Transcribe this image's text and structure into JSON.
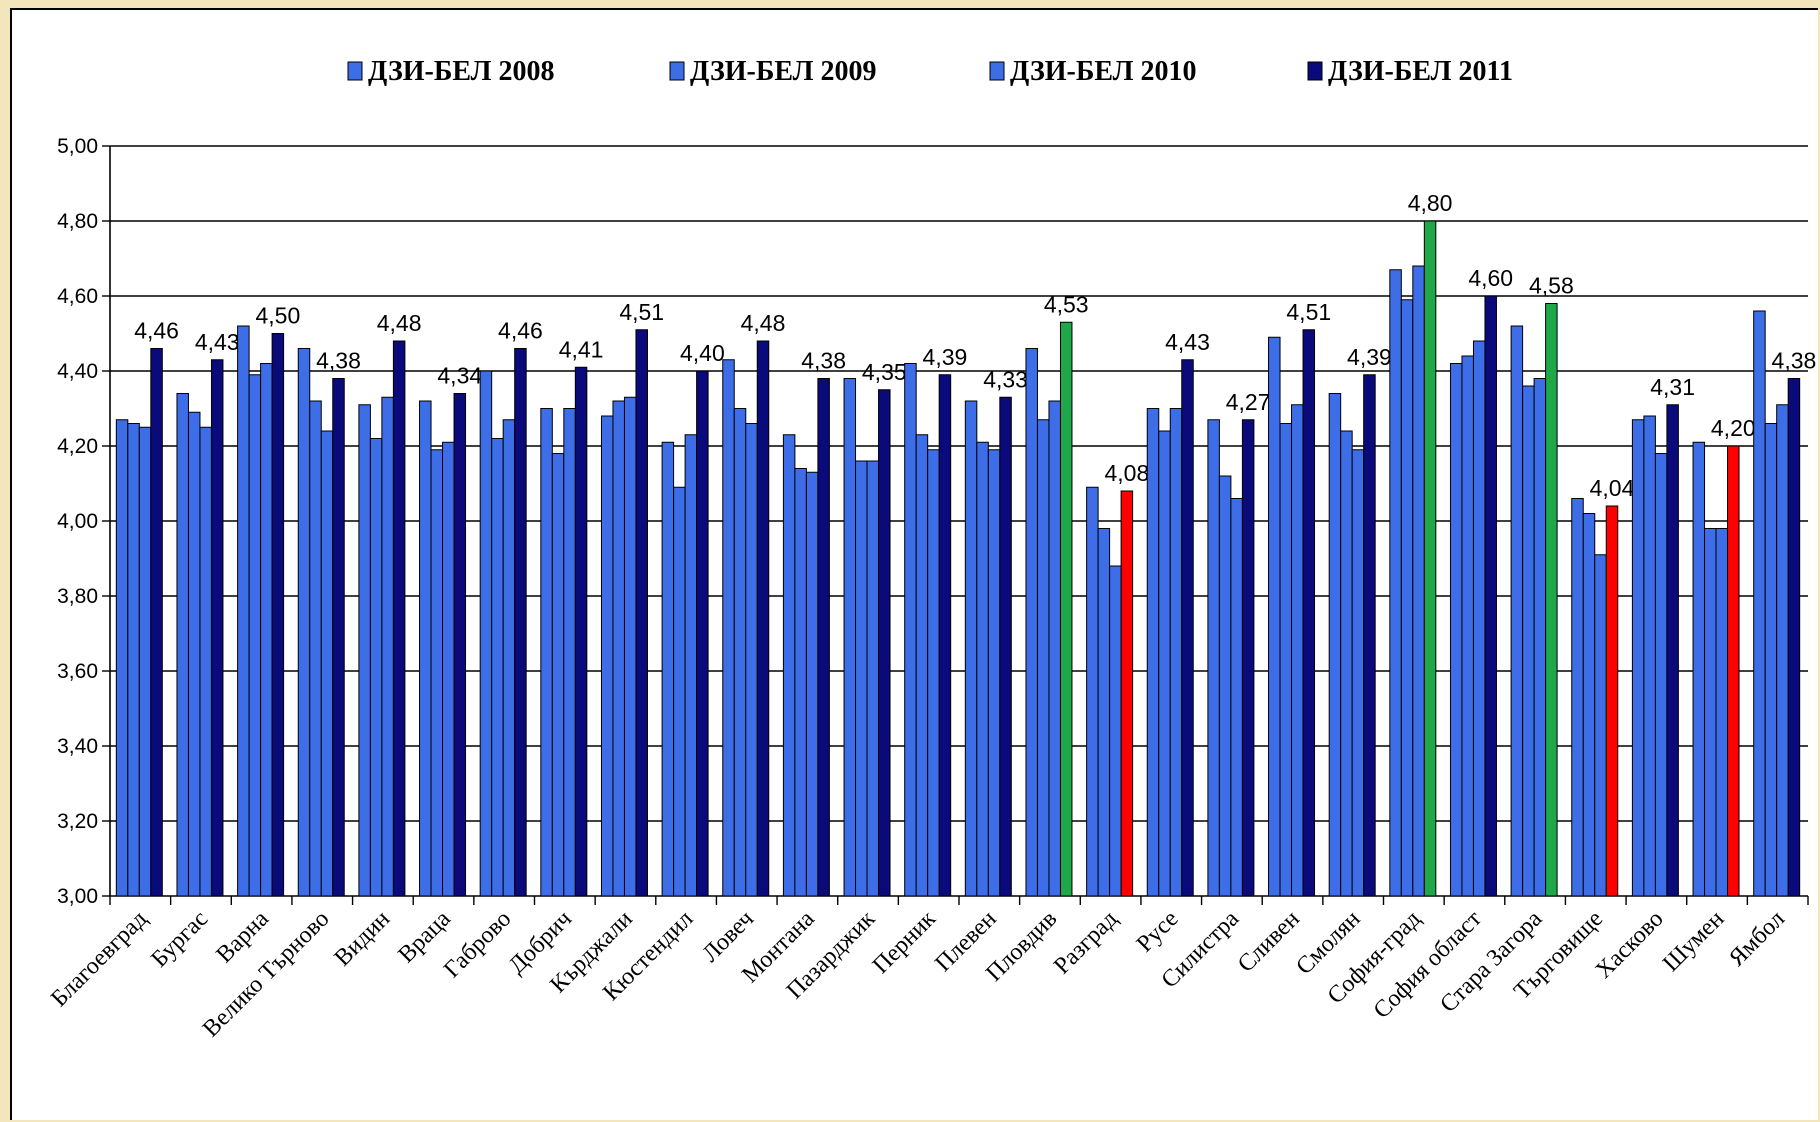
{
  "chart_data": {
    "type": "bar",
    "title": "",
    "xlabel": "",
    "ylabel": "",
    "ylim": [
      3.0,
      5.0
    ],
    "y_ticks": [
      "3,00",
      "3,20",
      "3,40",
      "3,60",
      "3,80",
      "4,00",
      "4,20",
      "4,40",
      "4,60",
      "4,80",
      "5,00"
    ],
    "grid": true,
    "legend_position": "top",
    "categories": [
      "Благоевград",
      "Бургас",
      "Варна",
      "Велико Търново",
      "Видин",
      "Враца",
      "Габрово",
      "Добрич",
      "Кърджали",
      "Кюстендил",
      "Ловеч",
      "Монтана",
      "Пазарджик",
      "Перник",
      "Плевен",
      "Пловдив",
      "Разград",
      "Русе",
      "Силистра",
      "Сливен",
      "Смолян",
      "София-град",
      "София област",
      "Стара Загора",
      "Търговище",
      "Хасково",
      "Шумен",
      "Ямбол"
    ],
    "series": [
      {
        "name": "ДЗИ-БЕЛ 2008",
        "color": "#3d6ee8",
        "values": [
          4.27,
          4.34,
          4.52,
          4.46,
          4.31,
          4.32,
          4.4,
          4.3,
          4.28,
          4.21,
          4.43,
          4.23,
          4.38,
          4.42,
          4.32,
          4.46,
          4.09,
          4.3,
          4.27,
          4.49,
          4.34,
          4.67,
          4.42,
          4.52,
          4.06,
          4.27,
          4.21,
          4.56
        ]
      },
      {
        "name": "ДЗИ-БЕЛ 2009",
        "color": "#3d6ee8",
        "values": [
          4.26,
          4.29,
          4.39,
          4.32,
          4.22,
          4.19,
          4.22,
          4.18,
          4.32,
          4.09,
          4.3,
          4.14,
          4.16,
          4.23,
          4.21,
          4.27,
          3.98,
          4.24,
          4.12,
          4.26,
          4.24,
          4.59,
          4.44,
          4.36,
          4.02,
          4.28,
          3.98,
          4.26
        ]
      },
      {
        "name": "ДЗИ-БЕЛ 2010",
        "color": "#3d6ee8",
        "values": [
          4.25,
          4.25,
          4.42,
          4.24,
          4.33,
          4.21,
          4.27,
          4.3,
          4.33,
          4.23,
          4.26,
          4.13,
          4.16,
          4.19,
          4.19,
          4.32,
          3.88,
          4.3,
          4.06,
          4.31,
          4.19,
          4.68,
          4.48,
          4.38,
          3.91,
          4.18,
          3.98,
          4.31
        ]
      },
      {
        "name": "ДЗИ-БЕЛ 2011",
        "color": "#0a0a7a",
        "values": [
          4.46,
          4.43,
          4.5,
          4.38,
          4.48,
          4.34,
          4.46,
          4.41,
          4.51,
          4.4,
          4.48,
          4.38,
          4.35,
          4.39,
          4.33,
          4.53,
          4.08,
          4.43,
          4.27,
          4.51,
          4.39,
          4.8,
          4.6,
          4.58,
          4.04,
          4.31,
          4.2,
          4.38
        ],
        "labels": [
          "4,46",
          "4,43",
          "4,50",
          "4,38",
          "4,48",
          "4,34",
          "4,46",
          "4,41",
          "4,51",
          "4,40",
          "4,48",
          "4,38",
          "4,35",
          "4,39",
          "4,33",
          "4,53",
          "4,08",
          "4,43",
          "4,27",
          "4,51",
          "4,39",
          "4,80",
          "4,60",
          "4,58",
          "4,04",
          "4,31",
          "4,20",
          "4,38"
        ],
        "highlight_colors": {
          "Пловдив": "#1fa84a",
          "София-град": "#1fa84a",
          "Стара Загора": "#1fa84a",
          "Разград": "#ff0000",
          "Търговище": "#ff0000",
          "Шумен": "#ff0000"
        }
      }
    ]
  }
}
